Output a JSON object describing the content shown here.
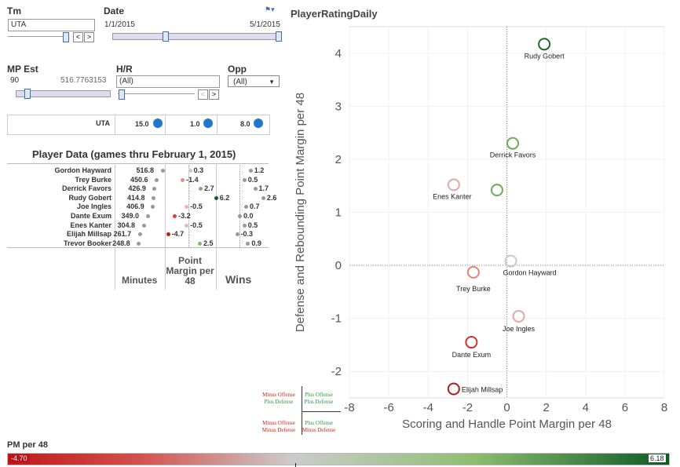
{
  "filters": {
    "tm": {
      "label": "Tm",
      "value": "UTA"
    },
    "date": {
      "label": "Date",
      "start": "1/1/2015",
      "end": "5/1/2015"
    },
    "mp_est": {
      "label": "MP Est",
      "min": "90",
      "max": "516.7763153"
    },
    "hr": {
      "label": "H/R",
      "value": "(All)"
    },
    "opp": {
      "label": "Opp",
      "value": "(All)"
    },
    "prev_btn": "<",
    "next_btn": ">"
  },
  "team_row": {
    "team": "UTA",
    "minutes": "15.0",
    "pm48": "1.0",
    "wins": "8.0"
  },
  "player_data": {
    "title": "Player Data (games thru February 1, 2015)",
    "col_minutes": "Minutes",
    "col_pm48": "Point Margin per 48",
    "col_wins": "Wins",
    "rows": [
      {
        "name": "Gordon Hayward",
        "minutes": "516.8",
        "pm48": "0.3",
        "wins": "1.2",
        "pmcolor": "#c8c8c8"
      },
      {
        "name": "Trey Burke",
        "minutes": "450.6",
        "pm48": "-1.4",
        "wins": "0.5",
        "pmcolor": "#ee8a84"
      },
      {
        "name": "Derrick Favors",
        "minutes": "426.9",
        "pm48": "2.7",
        "wins": "1.7",
        "pmcolor": "#7fb56a"
      },
      {
        "name": "Rudy Gobert",
        "minutes": "414.8",
        "pm48": "6.2",
        "wins": "2.6",
        "pmcolor": "#0f5f25"
      },
      {
        "name": "Joe Ingles",
        "minutes": "406.9",
        "pm48": "-0.5",
        "wins": "0.7",
        "pmcolor": "#e2b8b4"
      },
      {
        "name": "Dante Exum",
        "minutes": "349.0",
        "pm48": "-3.2",
        "wins": "0.0",
        "pmcolor": "#d9423a"
      },
      {
        "name": "Enes Kanter",
        "minutes": "304.8",
        "pm48": "-0.5",
        "wins": "0.5",
        "pmcolor": "#e2b8b4"
      },
      {
        "name": "Elijah Millsap",
        "minutes": "261.7",
        "pm48": "-4.7",
        "wins": "-0.3",
        "pmcolor": "#c41a14"
      },
      {
        "name": "Trevor Booker",
        "minutes": "248.8",
        "pm48": "2.5",
        "wins": "0.9",
        "pmcolor": "#86ba72"
      }
    ]
  },
  "quadrants": {
    "tl": [
      "Minus Offense",
      "Plus Defense"
    ],
    "tr": [
      "Plus Offense",
      "Plus Defense"
    ],
    "bl": [
      "Minus Offense",
      "Minus Defense"
    ],
    "br": [
      "Plus Offense",
      "Minus Defense"
    ]
  },
  "legend": {
    "title": "PM per 48",
    "min": "-4.70",
    "max": "6.18"
  },
  "chart_data": {
    "type": "scatter",
    "title": "PlayerRatingDaily",
    "xlabel": "Scoring and Handle Point Margin per 48",
    "ylabel": "Defense and Rebounding Point Margin per 48",
    "xlim": [
      -8,
      8
    ],
    "ylim": [
      -2.5,
      4.5
    ],
    "xticks": [
      "-8",
      "-6",
      "-4",
      "-2",
      "0",
      "2",
      "4",
      "6",
      "8"
    ],
    "yticks": [
      "-2",
      "-1",
      "0",
      "1",
      "2",
      "3",
      "4"
    ],
    "grid": false,
    "points": [
      {
        "label": "Rudy Gobert",
        "x": 1.9,
        "y": 4.17,
        "color": "#1e6b2e"
      },
      {
        "label": "Derrick Favors",
        "x": 0.3,
        "y": 2.3,
        "color": "#6aaa58"
      },
      {
        "label": "",
        "x": -0.5,
        "y": 1.42,
        "color": "#6aaa58"
      },
      {
        "label": "Enes Kanter",
        "x": -2.7,
        "y": 1.52,
        "color": "#e5a8a6"
      },
      {
        "label": "Gordon Hayward",
        "x": 0.2,
        "y": 0.08,
        "color": "#c8c8c8"
      },
      {
        "label": "Trey Burke",
        "x": -1.7,
        "y": -0.13,
        "color": "#ea7f78"
      },
      {
        "label": "Joe Ingles",
        "x": 0.6,
        "y": -0.96,
        "color": "#e5a8a6"
      },
      {
        "label": "Dante Exum",
        "x": -1.8,
        "y": -1.45,
        "color": "#d5302a"
      },
      {
        "label": "Elijah Millsap",
        "x": -2.7,
        "y": -2.33,
        "color": "#b8141b"
      }
    ]
  }
}
